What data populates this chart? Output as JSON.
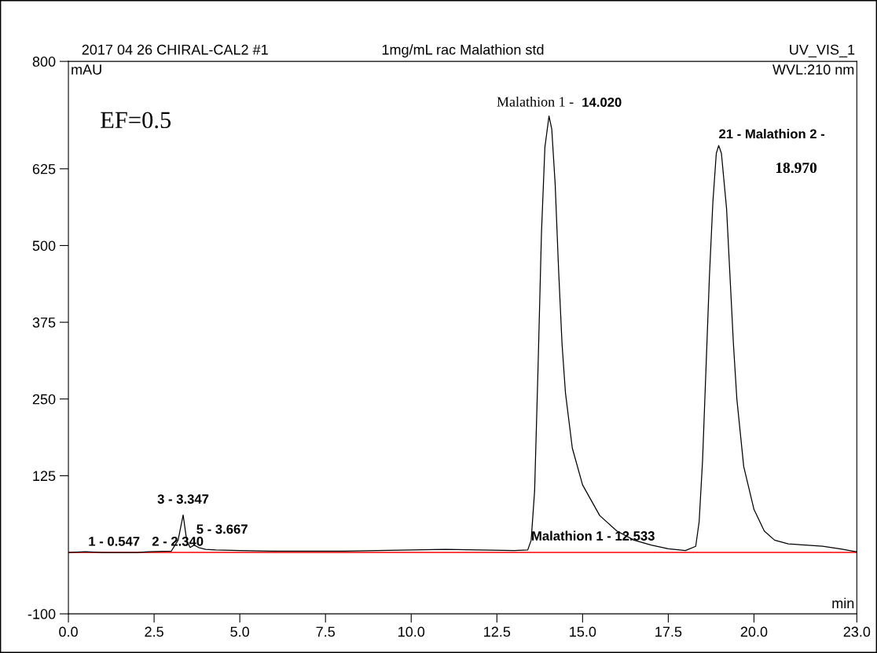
{
  "chart_data": {
    "type": "line",
    "title": "2017 04 26 CHIRAL-CAL2 #1",
    "subtitle": "1mg/mL rac Malathion std",
    "xlabel": "min",
    "ylabel": "mAU",
    "x": [
      0,
      0.5,
      1,
      2,
      2.34,
      3.0,
      3.2,
      3.347,
      3.45,
      3.55,
      3.667,
      3.8,
      4.0,
      4.3,
      5,
      6,
      7,
      8,
      9,
      10,
      11,
      12,
      13,
      13.4,
      13.5,
      13.6,
      13.7,
      13.8,
      13.9,
      14.02,
      14.1,
      14.2,
      14.3,
      14.4,
      14.5,
      14.7,
      15,
      15.5,
      16,
      16.5,
      17,
      17.5,
      18,
      18.3,
      18.4,
      18.5,
      18.6,
      18.7,
      18.8,
      18.9,
      18.97,
      19.05,
      19.2,
      19.3,
      19.4,
      19.5,
      19.7,
      20,
      20.3,
      20.6,
      21,
      21.5,
      22,
      22.5,
      23
    ],
    "series": [
      {
        "color": "#000000",
        "values": [
          0,
          1,
          0,
          0,
          1,
          2,
          20,
          61,
          20,
          8,
          12,
          8,
          5,
          4,
          3,
          2,
          2,
          2,
          3,
          4,
          5,
          4,
          3,
          4,
          20,
          100,
          300,
          520,
          660,
          711,
          690,
          600,
          460,
          340,
          260,
          170,
          110,
          60,
          35,
          20,
          12,
          6,
          3,
          10,
          50,
          150,
          300,
          450,
          570,
          650,
          663,
          650,
          560,
          450,
          340,
          250,
          140,
          70,
          35,
          20,
          14,
          12,
          10,
          6,
          1
        ]
      }
    ],
    "xlim": [
      0,
      23
    ],
    "ylim": [
      -100,
      800
    ],
    "xticks": [
      {
        "value": 0,
        "label": "0.0"
      },
      {
        "value": 2.5,
        "label": "2.5"
      },
      {
        "value": 5,
        "label": "5.0"
      },
      {
        "value": 7.5,
        "label": "7.5"
      },
      {
        "value": 10,
        "label": "10.0"
      },
      {
        "value": 12.5,
        "label": "12.5"
      },
      {
        "value": 15,
        "label": "15.0"
      },
      {
        "value": 17.5,
        "label": "17.5"
      },
      {
        "value": 20,
        "label": "20.0"
      },
      {
        "value": 23,
        "label": "23.0"
      }
    ],
    "yticks": [
      -100,
      125,
      250,
      375,
      500,
      625,
      800
    ],
    "ref_lines": [
      {
        "axis": "y",
        "value": 0,
        "color": "#ff0000"
      }
    ],
    "annotations": [
      "UV_VIS_1",
      "WVL:210 nm",
      "EF=0.5",
      {
        "text": "1 - 0.547",
        "x": 0.547,
        "y": 1
      },
      {
        "text": "2 - 2.340",
        "x": 2.34,
        "y": 1
      },
      {
        "text": "3 - 3.347",
        "x": 3.347,
        "y": 61
      },
      {
        "text": "5 - 3.667",
        "x": 3.667,
        "y": 12
      },
      "Malathion 1 - 12.533",
      {
        "text": "Malathion 1 - ",
        "x": 14.02,
        "y": 711
      },
      {
        "text": "14.020",
        "x": 14.02,
        "y": 711
      },
      {
        "text": "21 - Malathion 2 -",
        "x": 18.97,
        "y": 663
      },
      "18.970"
    ],
    "grid": false,
    "legend": false,
    "marker": "none",
    "line_style": "solid"
  }
}
